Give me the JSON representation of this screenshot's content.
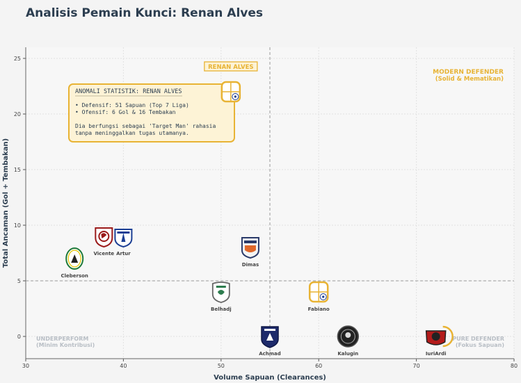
{
  "chart_data": {
    "type": "scatter",
    "title": "Analisis Pemain Kunci: Renan Alves",
    "xlabel": "Volume Sapuan (Clearances)",
    "ylabel": "Total Ancaman (Gol + Tembakan)",
    "xlim": [
      30,
      80
    ],
    "ylim": [
      -2,
      26
    ],
    "xticks": [
      30,
      40,
      50,
      60,
      70,
      80
    ],
    "yticks": [
      0,
      5,
      10,
      15,
      20,
      25
    ],
    "grid": true,
    "reference_lines": {
      "x": 55,
      "y": 5
    },
    "points": [
      {
        "name": "Renan Alves",
        "x": 51,
        "y": 22,
        "club": "borneo",
        "highlight": true
      },
      {
        "name": "Vicente",
        "x": 38,
        "y": 9,
        "club": "psm"
      },
      {
        "name": "Artur",
        "x": 40,
        "y": 9,
        "club": "persib"
      },
      {
        "name": "Cleberson",
        "x": 35,
        "y": 7,
        "club": "pss"
      },
      {
        "name": "Dimas",
        "x": 53,
        "y": 8,
        "club": "persija"
      },
      {
        "name": "Belhadj",
        "x": 50,
        "y": 4,
        "club": "persebaya"
      },
      {
        "name": "Fabiano",
        "x": 60,
        "y": 4,
        "club": "borneo"
      },
      {
        "name": "Achmad",
        "x": 55,
        "y": 0,
        "club": "arema"
      },
      {
        "name": "Kalugin",
        "x": 63,
        "y": 0,
        "club": "bali"
      },
      {
        "name": "IuriArdi",
        "x": 72,
        "y": 0,
        "club": "dewa"
      }
    ],
    "quadrants": {
      "top_right": {
        "title": "MODERN DEFENDER",
        "subtitle": "(Solid & Mematikan)"
      },
      "bottom_left": {
        "title": "UNDERPERFORM",
        "subtitle": "(Minim Kontribusi)"
      },
      "bottom_right": {
        "title": "PURE DEFENDER",
        "subtitle": "(Fokus Sapuan)"
      }
    },
    "highlight_label": "RENAN ALVES",
    "annotation": {
      "title": "ANOMALI STATISTIK: RENAN ALVES",
      "lines": [
        "• Defensif: 51 Sapuan (Top 7 Liga)",
        "• Ofensif: 6 Gol & 16 Tembakan",
        "",
        "Dia berfungsi sebagai 'Target Man' rahasia",
        "tanpa meninggalkan tugas utamanya."
      ]
    },
    "colors": {
      "highlight": "#e8b334",
      "annotation_bg": "#fdf3d6",
      "title": "#2c3e50",
      "axis_label": "#2c3e50",
      "quadrant_muted": "#b8bec5",
      "reference_line": "#999999",
      "grid": "#e2e2e2"
    }
  }
}
